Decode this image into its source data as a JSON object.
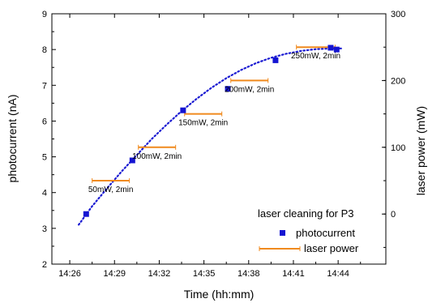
{
  "chart_data": {
    "type": "scatter",
    "xlabel": "Time (hh:mm)",
    "ylabel": "photocurrent (nA)",
    "y2label": "laser power (mW)",
    "x_ticks": [
      "14:26",
      "14:29",
      "14:32",
      "14:35",
      "14:38",
      "14:41",
      "14:44"
    ],
    "x_tick_minutes": [
      866,
      869,
      872,
      875,
      878,
      881,
      884
    ],
    "xlim_minutes": [
      864.8,
      887.2
    ],
    "ylim": [
      2,
      9
    ],
    "y_ticks": [
      2,
      3,
      4,
      5,
      6,
      7,
      8,
      9
    ],
    "y2lim": [
      -75,
      300
    ],
    "y2_ticks": [
      0,
      100,
      200,
      300
    ],
    "legend_title": "laser cleaning for P3",
    "legend_position": "bottom-right",
    "colors": {
      "photocurrent": "#1414d2",
      "laser_power": "#f08a1e",
      "fit": "#1a1ad2"
    },
    "series": [
      {
        "name": "photocurrent",
        "marker": "square",
        "axis": "left",
        "x_minutes": [
          867.1,
          870.2,
          873.6,
          876.6,
          879.8,
          883.5,
          883.9
        ],
        "y": [
          3.4,
          4.9,
          6.3,
          6.9,
          7.7,
          8.05,
          8.0
        ]
      },
      {
        "name": "laser power",
        "marker": "hbar",
        "axis": "right",
        "segments": [
          {
            "x_start": 867.5,
            "x_end": 870.0,
            "y": 50,
            "label": "50mW, 2min"
          },
          {
            "x_start": 870.6,
            "x_end": 873.1,
            "y": 100,
            "label": "100mW, 2min"
          },
          {
            "x_start": 873.7,
            "x_end": 876.2,
            "y": 150,
            "label": "150mW, 2min"
          },
          {
            "x_start": 876.8,
            "x_end": 879.3,
            "y": 200,
            "label": "200mW, 2min"
          },
          {
            "x_start": 881.2,
            "x_end": 883.8,
            "y": 250,
            "label": "250mW, 2min"
          }
        ]
      }
    ],
    "fit": {
      "style": "dotted",
      "x_minutes": [
        866.6,
        867.5,
        868.5,
        869.5,
        870.5,
        871.5,
        872.5,
        873.5,
        874.5,
        875.5,
        876.5,
        877.5,
        878.5,
        879.5,
        880.5,
        881.5,
        882.5,
        883.5,
        884.2
      ],
      "y": [
        3.1,
        3.62,
        4.12,
        4.6,
        5.05,
        5.5,
        5.9,
        6.28,
        6.62,
        6.93,
        7.2,
        7.43,
        7.62,
        7.77,
        7.88,
        7.96,
        8.01,
        8.03,
        8.03
      ]
    }
  }
}
